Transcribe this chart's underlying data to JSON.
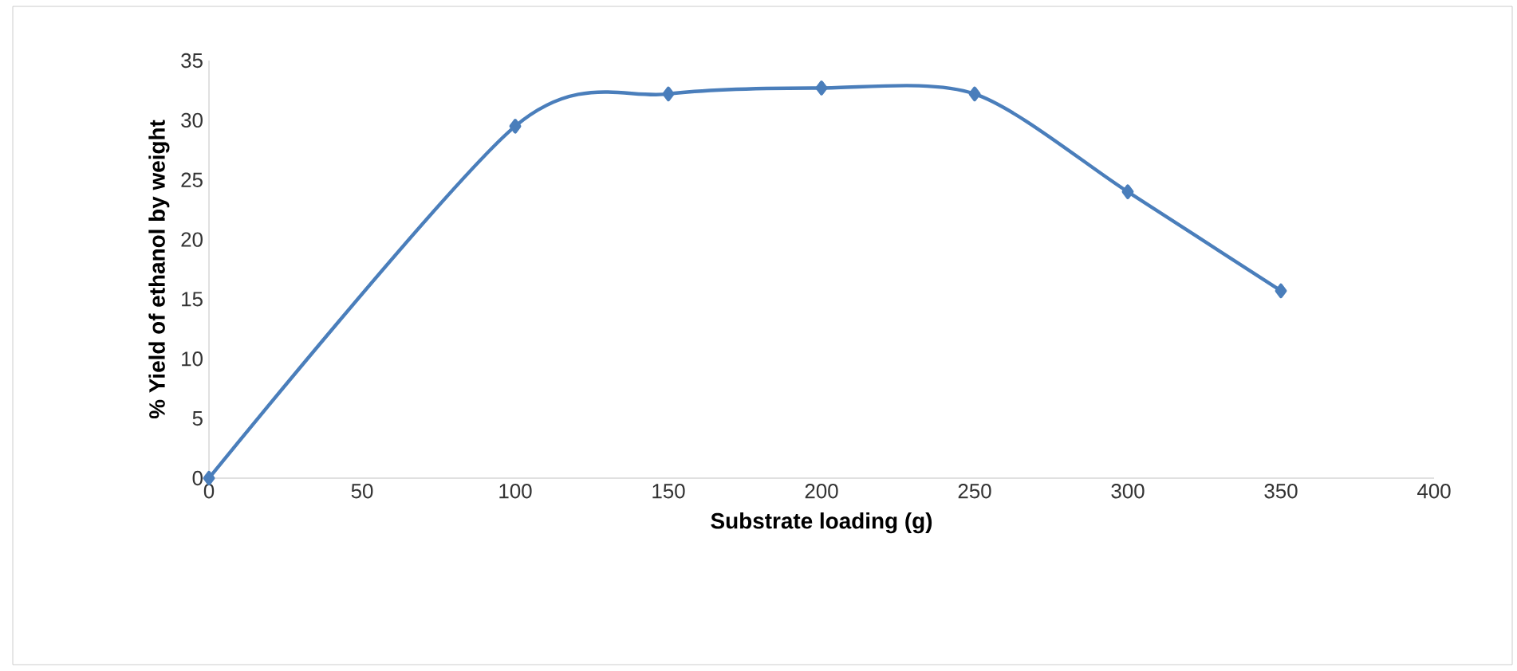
{
  "chart_data": {
    "type": "line",
    "xlabel": "Substrate loading (g)",
    "ylabel": "% Yield of ethanol by weight",
    "x": [
      0,
      100,
      150,
      200,
      250,
      300,
      350
    ],
    "series": [
      {
        "color": "#4a7ebb",
        "values": [
          0,
          29.5,
          32.2,
          32.7,
          32.2,
          24.0,
          15.7
        ]
      }
    ],
    "xlim": [
      0,
      400
    ],
    "xticks": [
      0,
      50,
      100,
      150,
      200,
      250,
      300,
      350,
      400
    ],
    "ylim": [
      0,
      35
    ],
    "yticks": [
      0,
      5,
      10,
      15,
      20,
      25,
      30,
      35
    ],
    "grid": false,
    "marker": "diamond",
    "line_style": "solid"
  }
}
